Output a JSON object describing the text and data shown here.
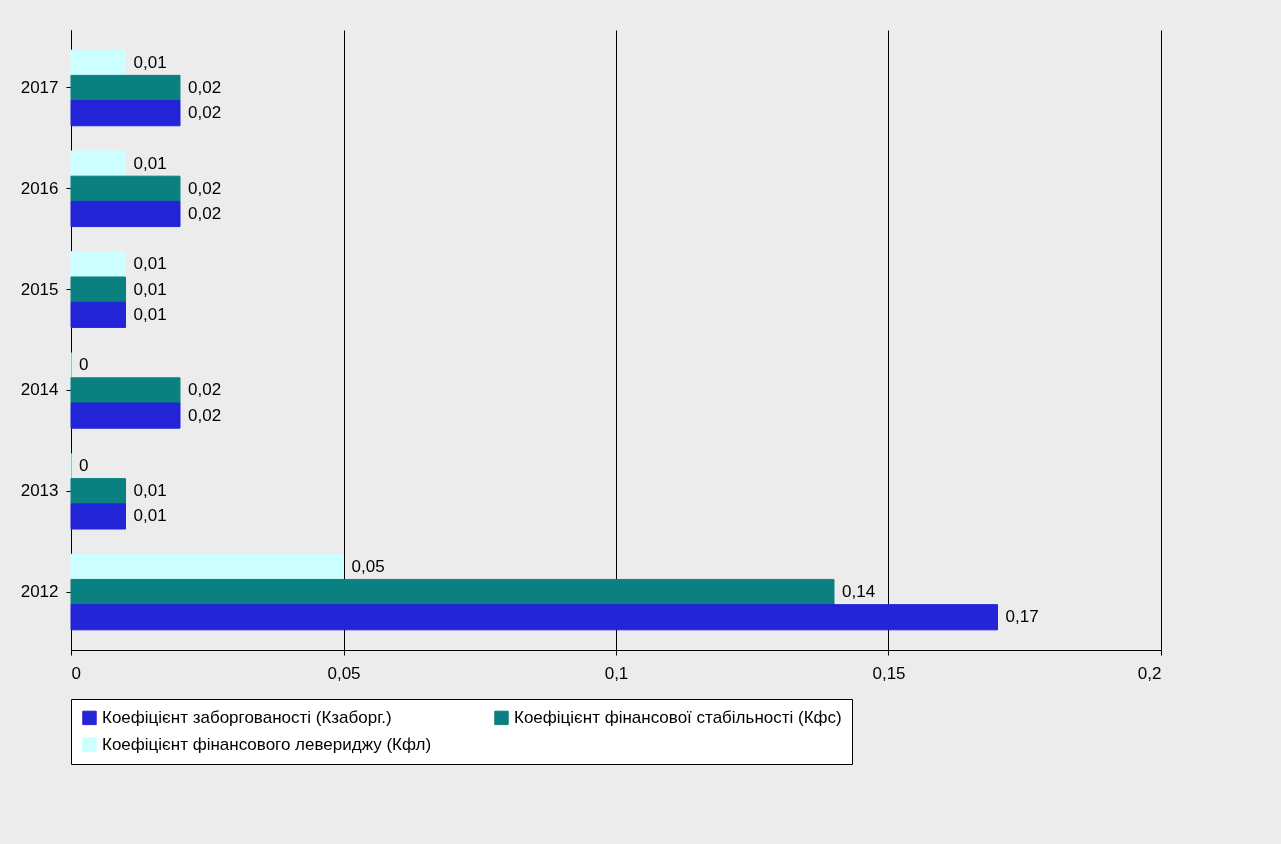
{
  "chart_data": {
    "type": "bar",
    "orientation": "horizontal",
    "categories": [
      "2017",
      "2016",
      "2015",
      "2014",
      "2013",
      "2012"
    ],
    "series": [
      {
        "name": "Коефіцієнт фінансового левериджу (Кфл)",
        "color": "#ccffff",
        "values": [
          0.01,
          0.01,
          0.01,
          0,
          0,
          0.05
        ],
        "value_labels": [
          "0,01",
          "0,01",
          "0,01",
          "0",
          "0",
          "0,05"
        ]
      },
      {
        "name": "Коефіцієнт фінансової стабільності (Кфс)",
        "color": "#0a8080",
        "values": [
          0.02,
          0.02,
          0.01,
          0.02,
          0.01,
          0.14
        ],
        "value_labels": [
          "0,02",
          "0,02",
          "0,01",
          "0,02",
          "0,01",
          "0,14"
        ]
      },
      {
        "name": "Коефіцієнт заборгованості (Кзаборг.)",
        "color": "#2323d8",
        "values": [
          0.02,
          0.02,
          0.01,
          0.02,
          0.01,
          0.17
        ],
        "value_labels": [
          "0,02",
          "0,02",
          "0,01",
          "0,02",
          "0,01",
          "0,17"
        ]
      }
    ],
    "xlim": [
      0,
      0.2
    ],
    "xticks": [
      {
        "value": 0,
        "label": "0"
      },
      {
        "value": 0.05,
        "label": "0,05"
      },
      {
        "value": 0.1,
        "label": "0,1"
      },
      {
        "value": 0.15,
        "label": "0,15"
      },
      {
        "value": 0.2,
        "label": "0,2"
      }
    ],
    "grid": "x",
    "legend": "bottom"
  }
}
